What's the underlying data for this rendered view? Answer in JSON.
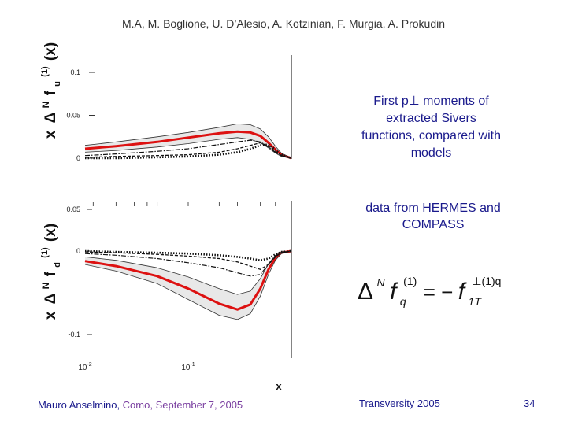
{
  "header": {
    "authors": "M.A, M. Boglione, U. D’Alesio, A. Kotzinian, F. Murgia, A. Prokudin"
  },
  "right_panel": {
    "caption": "First p⊥ moments of extracted Sivers functions, compared with models",
    "data_note": "data from HERMES and COMPASS"
  },
  "formula": {
    "lhs_delta": "Δ",
    "lhs_N": "N",
    "lhs_f": "f",
    "lhs_sub": "q",
    "lhs_sup": "(1)",
    "equals": "= −",
    "rhs_f": "f",
    "rhs_sub": "1T",
    "rhs_sup": "⊥(1)q"
  },
  "footer": {
    "presenter": "Mauro Anselmino, ",
    "venue": "Como, September 7, 2005",
    "conference": "Transversity 2005",
    "page_number": "34"
  },
  "colors": {
    "fit_curve": "#dd1111",
    "band_fill": "#e8e8e8",
    "text_blue": "#1a1a8c",
    "axis": "#333333"
  },
  "chart_data": [
    {
      "type": "line",
      "panel": "up-quark",
      "ylabel_parts": {
        "x": "x",
        "delta": "Δ",
        "N": "N",
        "f": "f",
        "flavor": "u",
        "moment": "(1)",
        "arg": "(x)"
      },
      "x_scale": "log",
      "xlim": [
        0.01,
        1
      ],
      "ylim": [
        0,
        0.1
      ],
      "y_ticks": [
        "0.1",
        "0.05",
        "0"
      ],
      "y_tick_values": [
        0.1,
        0.05,
        0
      ],
      "x": [
        0.01,
        0.02,
        0.05,
        0.1,
        0.2,
        0.3,
        0.4,
        0.5,
        0.6,
        0.7,
        0.8,
        1.0
      ],
      "series": [
        {
          "role": "fit",
          "values": [
            0.011,
            0.014,
            0.019,
            0.024,
            0.029,
            0.031,
            0.03,
            0.026,
            0.018,
            0.01,
            0.004,
            0.0
          ]
        },
        {
          "role": "band-upper",
          "values": [
            0.015,
            0.019,
            0.025,
            0.03,
            0.036,
            0.04,
            0.039,
            0.034,
            0.025,
            0.014,
            0.006,
            0.0
          ]
        },
        {
          "role": "band-lower",
          "values": [
            0.007,
            0.009,
            0.013,
            0.017,
            0.022,
            0.024,
            0.022,
            0.018,
            0.012,
            0.006,
            0.002,
            0.0
          ]
        },
        {
          "role": "model-dashdot",
          "values": [
            0.003,
            0.005,
            0.008,
            0.011,
            0.016,
            0.019,
            0.021,
            0.019,
            0.013,
            0.007,
            0.003,
            0.0
          ]
        },
        {
          "role": "model-dashed",
          "values": [
            0.001,
            0.002,
            0.003,
            0.004,
            0.007,
            0.011,
            0.015,
            0.018,
            0.014,
            0.008,
            0.003,
            0.0
          ]
        },
        {
          "role": "model-dotted",
          "values": [
            0.0,
            0.0,
            0.001,
            0.002,
            0.004,
            0.007,
            0.011,
            0.015,
            0.016,
            0.01,
            0.004,
            0.0
          ]
        }
      ]
    },
    {
      "type": "line",
      "panel": "down-quark",
      "ylabel_parts": {
        "x": "x",
        "delta": "Δ",
        "N": "N",
        "f": "f",
        "flavor": "d",
        "moment": "(1)",
        "arg": "(x)"
      },
      "xlabel": "x",
      "x_scale": "log",
      "xlim": [
        0.01,
        1
      ],
      "ylim": [
        -0.1,
        0.05
      ],
      "y_ticks": [
        "0.05",
        "0",
        "-0.1"
      ],
      "y_tick_values": [
        0.05,
        0,
        -0.1
      ],
      "x_ticks": [
        {
          "base": "10",
          "exp": "-2",
          "value": 0.01
        },
        {
          "base": "10",
          "exp": "-1",
          "value": 0.1
        }
      ],
      "x": [
        0.01,
        0.02,
        0.05,
        0.1,
        0.2,
        0.3,
        0.4,
        0.5,
        0.6,
        0.7,
        0.8,
        1.0
      ],
      "series": [
        {
          "role": "fit",
          "values": [
            -0.012,
            -0.018,
            -0.03,
            -0.045,
            -0.063,
            -0.07,
            -0.064,
            -0.045,
            -0.022,
            -0.008,
            -0.002,
            0.0
          ]
        },
        {
          "role": "band-upper",
          "values": [
            -0.007,
            -0.011,
            -0.02,
            -0.031,
            -0.045,
            -0.052,
            -0.048,
            -0.033,
            -0.015,
            -0.005,
            -0.001,
            0.0
          ]
        },
        {
          "role": "band-lower",
          "values": [
            -0.016,
            -0.024,
            -0.039,
            -0.058,
            -0.077,
            -0.082,
            -0.075,
            -0.054,
            -0.028,
            -0.011,
            -0.003,
            0.0
          ]
        },
        {
          "role": "model-dashdot",
          "values": [
            -0.003,
            -0.005,
            -0.009,
            -0.014,
            -0.02,
            -0.026,
            -0.03,
            -0.028,
            -0.016,
            -0.006,
            -0.002,
            0.0
          ]
        },
        {
          "role": "model-dashed",
          "values": [
            -0.001,
            -0.002,
            -0.004,
            -0.006,
            -0.009,
            -0.013,
            -0.018,
            -0.022,
            -0.016,
            -0.007,
            -0.002,
            0.0
          ]
        },
        {
          "role": "model-dotted",
          "values": [
            0.0,
            -0.001,
            -0.002,
            -0.003,
            -0.005,
            -0.007,
            -0.009,
            -0.011,
            -0.009,
            -0.004,
            -0.001,
            0.0
          ]
        }
      ]
    }
  ]
}
